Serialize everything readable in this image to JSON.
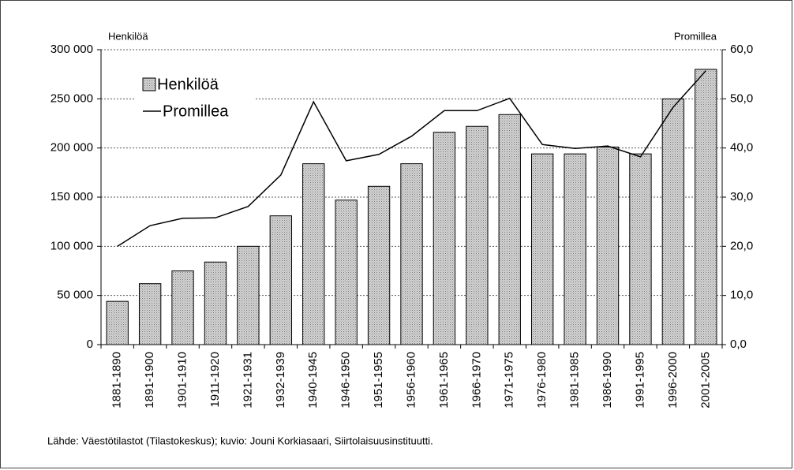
{
  "chart_data": {
    "type": "bar",
    "axis_label_left": "Henkilöä",
    "axis_label_right": "Promillea",
    "source": "Lähde: Väestötilastot (Tilastokeskus); kuvio: Jouni Korkiasaari, Siirtolaisuusinstituutti.",
    "categories": [
      "1881-1890",
      "1891-1900",
      "1901-1910",
      "1911-1920",
      "1921-1931",
      "1932-1939",
      "1940-1945",
      "1946-1950",
      "1951-1955",
      "1956-1960",
      "1961-1965",
      "1966-1970",
      "1971-1975",
      "1976-1980",
      "1981-1985",
      "1986-1990",
      "1991-1995",
      "1996-2000",
      "2001-2005"
    ],
    "series": [
      {
        "name": "Henkilöä",
        "color": "#d4d4d4",
        "type": "bar",
        "values": [
          44000,
          62000,
          75000,
          84000,
          100000,
          131000,
          184000,
          147000,
          161000,
          184000,
          216000,
          222000,
          234000,
          194000,
          194000,
          201000,
          194000,
          250000,
          280000
        ]
      },
      {
        "name": "Promillea",
        "color": "#000000",
        "type": "line",
        "axis": "y2",
        "values": [
          20.0,
          24.2,
          25.7,
          25.8,
          28.1,
          34.5,
          49.4,
          37.4,
          38.7,
          42.4,
          47.6,
          47.6,
          50.1,
          40.7,
          39.9,
          40.4,
          38.2,
          48.3,
          55.7
        ]
      }
    ],
    "ylim": [
      0,
      300000
    ],
    "yticks": [
      0,
      {
        "value": 50000,
        "label": "50 000"
      },
      {
        "value": 100000,
        "label": "100 000"
      },
      {
        "value": 150000,
        "label": "150 000"
      },
      {
        "value": 200000,
        "label": "200 000"
      },
      {
        "value": 250000,
        "label": "250 000"
      },
      {
        "value": 300000,
        "label": "300 000"
      }
    ],
    "y2lim": [
      0,
      60
    ],
    "y2ticks": [
      {
        "value": 0,
        "label": "0,0"
      },
      {
        "value": 10,
        "label": "10,0"
      },
      {
        "value": 20,
        "label": "20,0"
      },
      {
        "value": 30,
        "label": "30,0"
      },
      {
        "value": 40,
        "label": "40,0"
      },
      {
        "value": 50,
        "label": "50,0"
      },
      {
        "value": 60,
        "label": "60,0"
      }
    ],
    "grid": true
  }
}
